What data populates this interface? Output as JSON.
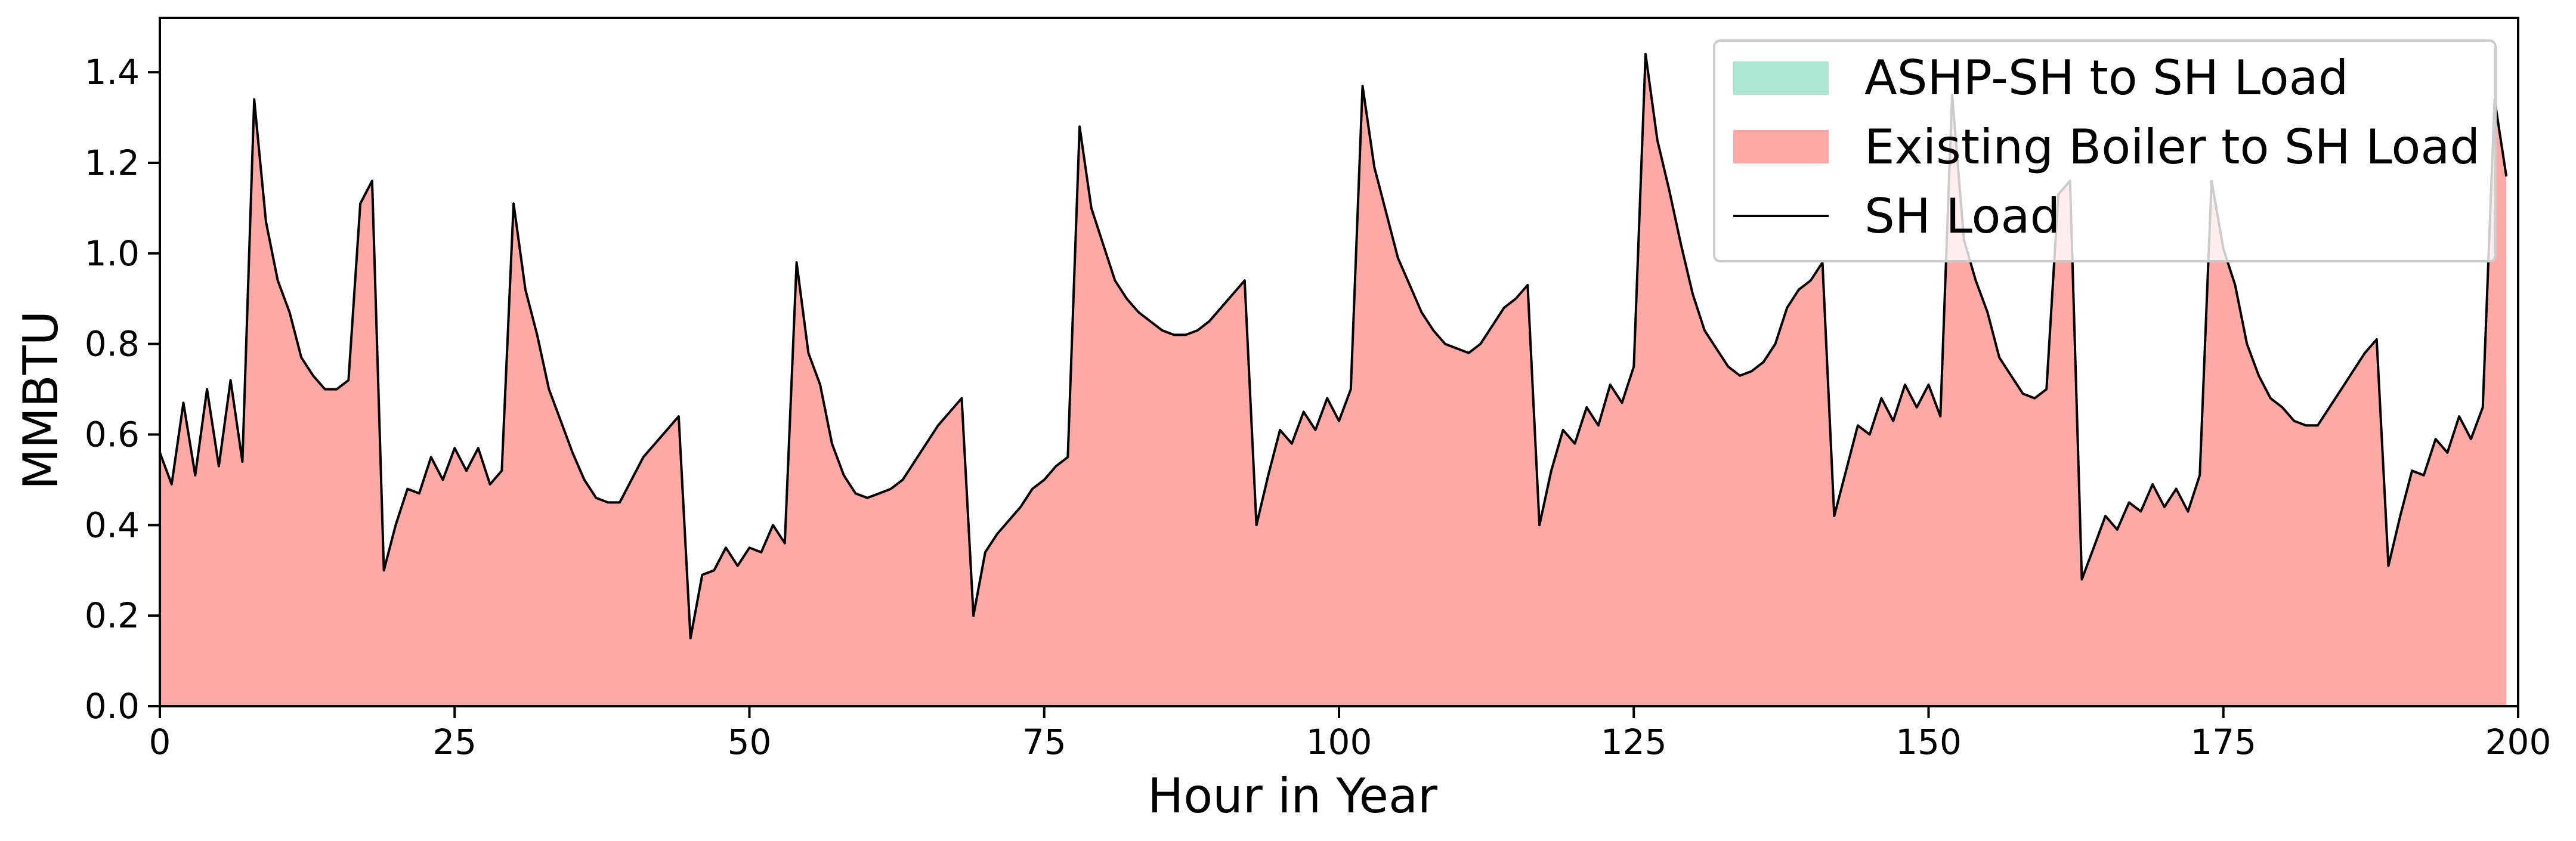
{
  "chart_data": {
    "type": "area",
    "title": "",
    "xlabel": "Hour in Year",
    "ylabel": "MMBTU",
    "xlim": [
      0,
      200
    ],
    "ylim": [
      0,
      1.52
    ],
    "xticks": [
      0,
      25,
      50,
      75,
      100,
      125,
      150,
      175,
      200
    ],
    "yticks": [
      0.0,
      0.2,
      0.4,
      0.6,
      0.8,
      1.0,
      1.2,
      1.4
    ],
    "xtick_labels": [
      "0",
      "25",
      "50",
      "75",
      "100",
      "125",
      "150",
      "175",
      "200"
    ],
    "ytick_labels": [
      "0.0",
      "0.2",
      "0.4",
      "0.6",
      "0.8",
      "1.0",
      "1.2",
      "1.4"
    ],
    "grid": false,
    "legend_position": "top-right",
    "series": [
      {
        "name": "ASHP-SH to SH Load",
        "kind": "stacked-area",
        "color": "#abe7d3",
        "values": "zero-throughout"
      },
      {
        "name": "Existing Boiler to SH Load",
        "kind": "stacked-area",
        "color": "#fdaaa6",
        "values": "equal-to-SH-Load"
      },
      {
        "name": "SH Load",
        "kind": "line",
        "color": "#000000"
      }
    ],
    "x": [
      0,
      1,
      2,
      3,
      4,
      5,
      6,
      7,
      8,
      9,
      10,
      11,
      12,
      13,
      14,
      15,
      16,
      17,
      18,
      19,
      20,
      21,
      22,
      23,
      24,
      25,
      26,
      27,
      28,
      29,
      30,
      31,
      32,
      33,
      34,
      35,
      36,
      37,
      38,
      39,
      40,
      41,
      42,
      43,
      44,
      45,
      46,
      47,
      48,
      49,
      50,
      51,
      52,
      53,
      54,
      55,
      56,
      57,
      58,
      59,
      60,
      61,
      62,
      63,
      64,
      65,
      66,
      67,
      68,
      69,
      70,
      71,
      72,
      73,
      74,
      75,
      76,
      77,
      78,
      79,
      80,
      81,
      82,
      83,
      84,
      85,
      86,
      87,
      88,
      89,
      90,
      91,
      92,
      93,
      94,
      95,
      96,
      97,
      98,
      99,
      100,
      101,
      102,
      103,
      104,
      105,
      106,
      107,
      108,
      109,
      110,
      111,
      112,
      113,
      114,
      115,
      116,
      117,
      118,
      119,
      120,
      121,
      122,
      123,
      124,
      125,
      126,
      127,
      128,
      129,
      130,
      131,
      132,
      133,
      134,
      135,
      136,
      137,
      138,
      139,
      140,
      141,
      142,
      143,
      144,
      145,
      146,
      147,
      148,
      149,
      150,
      151,
      152,
      153,
      154,
      155,
      156,
      157,
      158,
      159,
      160,
      161,
      162,
      163,
      164,
      165,
      166,
      167,
      168,
      169,
      170,
      171,
      172,
      173,
      174,
      175,
      176,
      177,
      178,
      179,
      180,
      181,
      182,
      183,
      184,
      185,
      186,
      187,
      188,
      189,
      190,
      191,
      192,
      193,
      194,
      195,
      196,
      197,
      198,
      199
    ],
    "sh_load": [
      0.56,
      0.49,
      0.67,
      0.51,
      0.7,
      0.53,
      0.72,
      0.54,
      1.34,
      1.07,
      0.94,
      0.87,
      0.77,
      0.73,
      0.7,
      0.7,
      0.72,
      1.11,
      1.16,
      0.3,
      0.4,
      0.48,
      0.47,
      0.55,
      0.5,
      0.57,
      0.52,
      0.57,
      0.49,
      0.52,
      1.11,
      0.92,
      0.82,
      0.7,
      0.63,
      0.56,
      0.5,
      0.46,
      0.45,
      0.45,
      0.5,
      0.55,
      0.58,
      0.61,
      0.64,
      0.15,
      0.29,
      0.3,
      0.35,
      0.31,
      0.35,
      0.34,
      0.4,
      0.36,
      0.98,
      0.78,
      0.71,
      0.58,
      0.51,
      0.47,
      0.46,
      0.47,
      0.48,
      0.5,
      0.54,
      0.58,
      0.62,
      0.65,
      0.68,
      0.2,
      0.34,
      0.38,
      0.41,
      0.44,
      0.48,
      0.5,
      0.53,
      0.55,
      1.28,
      1.1,
      1.02,
      0.94,
      0.9,
      0.87,
      0.85,
      0.83,
      0.82,
      0.82,
      0.83,
      0.85,
      0.88,
      0.91,
      0.94,
      0.4,
      0.51,
      0.61,
      0.58,
      0.65,
      0.61,
      0.68,
      0.63,
      0.7,
      1.37,
      1.19,
      1.09,
      0.99,
      0.93,
      0.87,
      0.83,
      0.8,
      0.79,
      0.78,
      0.8,
      0.84,
      0.88,
      0.9,
      0.93,
      0.4,
      0.52,
      0.61,
      0.58,
      0.66,
      0.62,
      0.71,
      0.67,
      0.75,
      1.44,
      1.25,
      1.14,
      1.02,
      0.91,
      0.83,
      0.79,
      0.75,
      0.73,
      0.74,
      0.76,
      0.8,
      0.88,
      0.92,
      0.94,
      0.98,
      0.42,
      0.52,
      0.62,
      0.6,
      0.68,
      0.63,
      0.71,
      0.66,
      0.71,
      0.64,
      1.35,
      1.03,
      0.94,
      0.87,
      0.77,
      0.73,
      0.69,
      0.68,
      0.7,
      1.13,
      1.16,
      0.28,
      0.35,
      0.42,
      0.39,
      0.45,
      0.43,
      0.49,
      0.44,
      0.48,
      0.43,
      0.51,
      1.16,
      1.01,
      0.93,
      0.8,
      0.73,
      0.68,
      0.66,
      0.63,
      0.62,
      0.62,
      0.66,
      0.7,
      0.74,
      0.78,
      0.81,
      0.31,
      0.42,
      0.52,
      0.51,
      0.59,
      0.56,
      0.64,
      0.59,
      0.66,
      1.34,
      1.17
    ],
    "legend": [
      {
        "label": "ASHP-SH to SH Load",
        "swatch": "patch",
        "color": "#abe7d3"
      },
      {
        "label": "Existing Boiler to SH Load",
        "swatch": "patch",
        "color": "#fdaaa6"
      },
      {
        "label": "SH Load",
        "swatch": "line",
        "color": "#000000"
      }
    ]
  }
}
